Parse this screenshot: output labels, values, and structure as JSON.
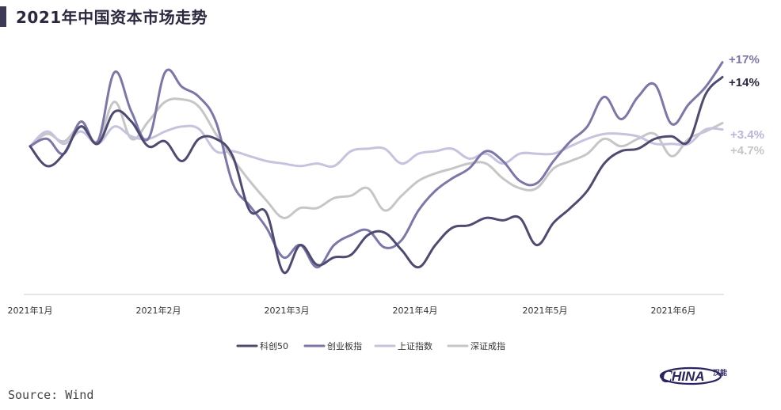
{
  "title": "2021年中国资本市场走势",
  "source": "Source: Wind",
  "logo": {
    "text": "HINA",
    "glyphs": "汉能"
  },
  "colors": {
    "科创50": "#4e4b72",
    "创业板指": "#7b77a8",
    "上证指数": "#c5c3dd",
    "深证成指": "#c6c6c6",
    "axis": "#cccccc",
    "tick_text": "#333333"
  },
  "chart_data": {
    "type": "line",
    "title": "2021年中国资本市场走势",
    "xlabel": "",
    "ylabel": "",
    "x_ticks": [
      "2021年1月",
      "2021年2月",
      "2021年3月",
      "2021年4月",
      "2021年5月",
      "2021年6月"
    ],
    "x": [
      0,
      4,
      8,
      12,
      16,
      20,
      24,
      28,
      32,
      36,
      40,
      44,
      48,
      52,
      56,
      60,
      64,
      68,
      72,
      76,
      80,
      84,
      88,
      92,
      96,
      100,
      104,
      108,
      112,
      116,
      120,
      124,
      128,
      132,
      136,
      140,
      144,
      148,
      152,
      156,
      160,
      164
    ],
    "ylim": [
      -30,
      20
    ],
    "grid": false,
    "legend_position": "bottom",
    "series": [
      {
        "name": "科创50",
        "values": [
          0.0,
          -4.0,
          -1.5,
          4.0,
          0.5,
          7.0,
          5.0,
          0.0,
          1.0,
          -3.0,
          1.5,
          1.5,
          -2.0,
          -13.0,
          -13.5,
          -25.5,
          -20.0,
          -24.0,
          -22.5,
          -22.0,
          -18.0,
          -17.5,
          -21.0,
          -24.5,
          -20.0,
          -16.5,
          -16.0,
          -14.5,
          -15.0,
          -14.5,
          -20.0,
          -15.5,
          -12.5,
          -9.0,
          -3.5,
          -1.0,
          -0.5,
          1.5,
          2.0,
          1.0,
          10.5,
          14.0
        ]
      },
      {
        "name": "创业板指",
        "values": [
          0.0,
          1.5,
          -1.5,
          5.0,
          1.0,
          15.0,
          7.0,
          1.5,
          15.0,
          12.0,
          10.0,
          5.0,
          -7.5,
          -12.0,
          -16.5,
          -22.5,
          -20.0,
          -24.5,
          -20.0,
          -18.0,
          -17.0,
          -20.5,
          -19.0,
          -13.0,
          -9.0,
          -6.5,
          -4.5,
          -1.0,
          -3.0,
          -7.0,
          -7.5,
          -3.0,
          1.0,
          4.0,
          10.0,
          5.5,
          10.0,
          12.5,
          4.5,
          8.5,
          12.0,
          17.0
        ]
      },
      {
        "name": "上证指数",
        "values": [
          0.0,
          3.0,
          0.5,
          3.0,
          0.5,
          4.0,
          2.0,
          1.5,
          3.0,
          4.0,
          3.5,
          -1.0,
          -1.0,
          -2.0,
          -3.0,
          -3.5,
          -4.0,
          -3.5,
          -4.0,
          -1.0,
          -0.5,
          -0.5,
          -3.5,
          -1.5,
          -1.0,
          -0.5,
          -2.5,
          -1.5,
          -3.5,
          -1.5,
          -1.5,
          -1.5,
          0.0,
          1.5,
          2.5,
          2.5,
          2.0,
          0.5,
          0.5,
          0.5,
          3.4,
          3.4
        ]
      },
      {
        "name": "深证成指",
        "values": [
          0.0,
          2.5,
          1.0,
          4.0,
          1.0,
          9.0,
          1.5,
          5.0,
          9.0,
          9.5,
          8.0,
          2.5,
          -2.5,
          -7.0,
          -11.0,
          -14.5,
          -12.5,
          -12.5,
          -10.5,
          -10.0,
          -8.5,
          -13.0,
          -10.0,
          -7.0,
          -5.5,
          -4.5,
          -3.5,
          -3.5,
          -6.5,
          -8.5,
          -8.5,
          -4.5,
          -3.0,
          -1.5,
          1.5,
          0.0,
          1.5,
          2.5,
          -2.0,
          1.5,
          3.0,
          4.7
        ]
      }
    ],
    "end_labels": [
      {
        "series": "创业板指",
        "text": "+17%"
      },
      {
        "series": "科创50",
        "text": "+14%"
      },
      {
        "series": "上证指数",
        "text": "+3.4%"
      },
      {
        "series": "深证成指",
        "text": "+4.7%"
      }
    ],
    "legend": [
      "科创50",
      "创业板指",
      "上证指数",
      "深证成指"
    ]
  }
}
